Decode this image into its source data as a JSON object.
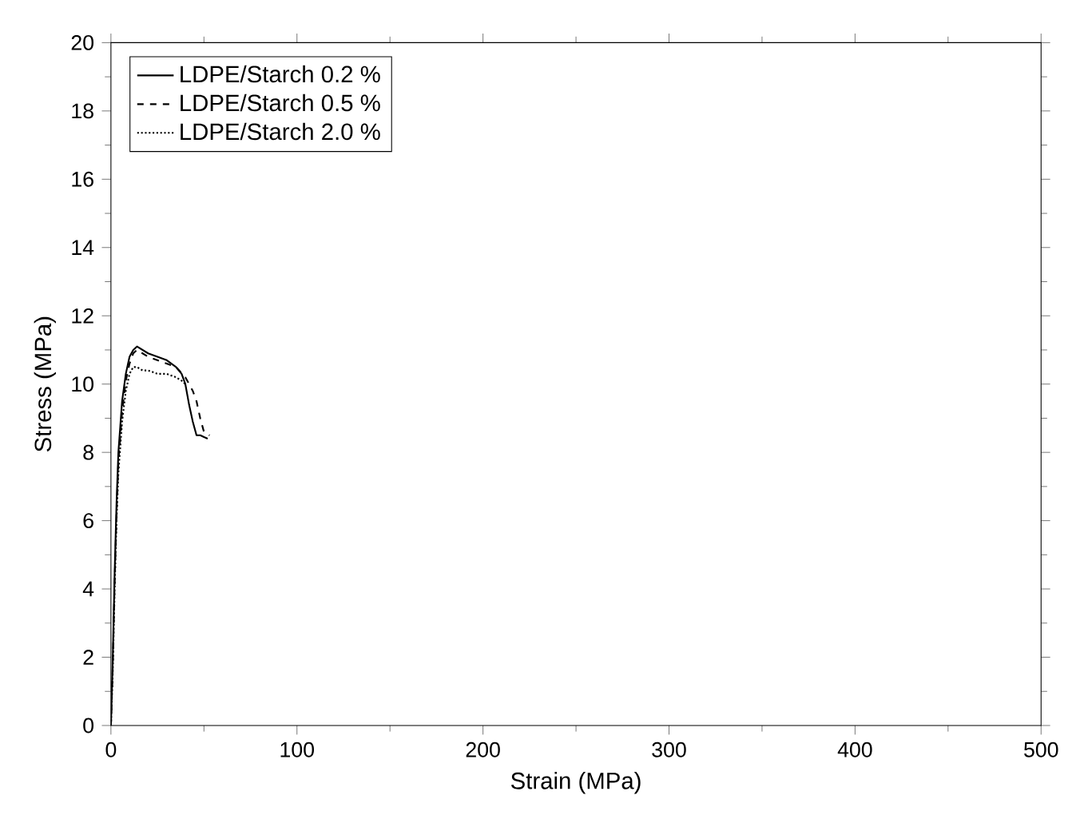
{
  "chart_data": {
    "type": "line",
    "xlabel": "Strain (MPa)",
    "ylabel": "Stress (MPa)",
    "xlim": [
      0,
      500
    ],
    "ylim": [
      0,
      20
    ],
    "xticks": [
      0,
      100,
      200,
      300,
      400,
      500
    ],
    "yticks": [
      0,
      2,
      4,
      6,
      8,
      10,
      12,
      14,
      16,
      18,
      20
    ],
    "legend": "top left",
    "grid": false,
    "series": [
      {
        "name": "LDPE/Starch 0.2 %",
        "color": "#000000",
        "line_style": "solid",
        "x": [
          0,
          1,
          2,
          3,
          4,
          6,
          8,
          10,
          12,
          14,
          17,
          20,
          25,
          30,
          35,
          38,
          40,
          42,
          44,
          46,
          48,
          52
        ],
        "values": [
          0,
          2,
          4.5,
          6.5,
          8,
          9.5,
          10.3,
          10.8,
          11,
          11.1,
          11,
          10.9,
          10.8,
          10.7,
          10.5,
          10.3,
          10,
          9.4,
          8.9,
          8.5,
          8.5,
          8.4
        ]
      },
      {
        "name": "LDPE/Starch 0.5 %",
        "color": "#000000",
        "line_style": "dashed",
        "x": [
          0,
          1,
          2,
          3,
          4,
          6,
          8,
          10,
          12,
          14,
          17,
          20,
          25,
          30,
          35,
          40,
          44,
          46,
          48,
          50,
          53
        ],
        "values": [
          0,
          1.8,
          4.2,
          6.2,
          7.7,
          9.2,
          10.1,
          10.6,
          10.9,
          11,
          10.9,
          10.8,
          10.7,
          10.6,
          10.5,
          10.2,
          9.8,
          9.5,
          9,
          8.6,
          8.5
        ]
      },
      {
        "name": "LDPE/Starch 2.0 %",
        "color": "#000000",
        "line_style": "dotted",
        "x": [
          0,
          1,
          2,
          3,
          4,
          6,
          8,
          10,
          12,
          14,
          17,
          20,
          25,
          30,
          35,
          38,
          40
        ],
        "values": [
          0,
          1.6,
          4,
          6,
          7.4,
          8.9,
          9.8,
          10.3,
          10.5,
          10.5,
          10.4,
          10.4,
          10.3,
          10.3,
          10.2,
          10.1,
          10
        ]
      }
    ]
  }
}
